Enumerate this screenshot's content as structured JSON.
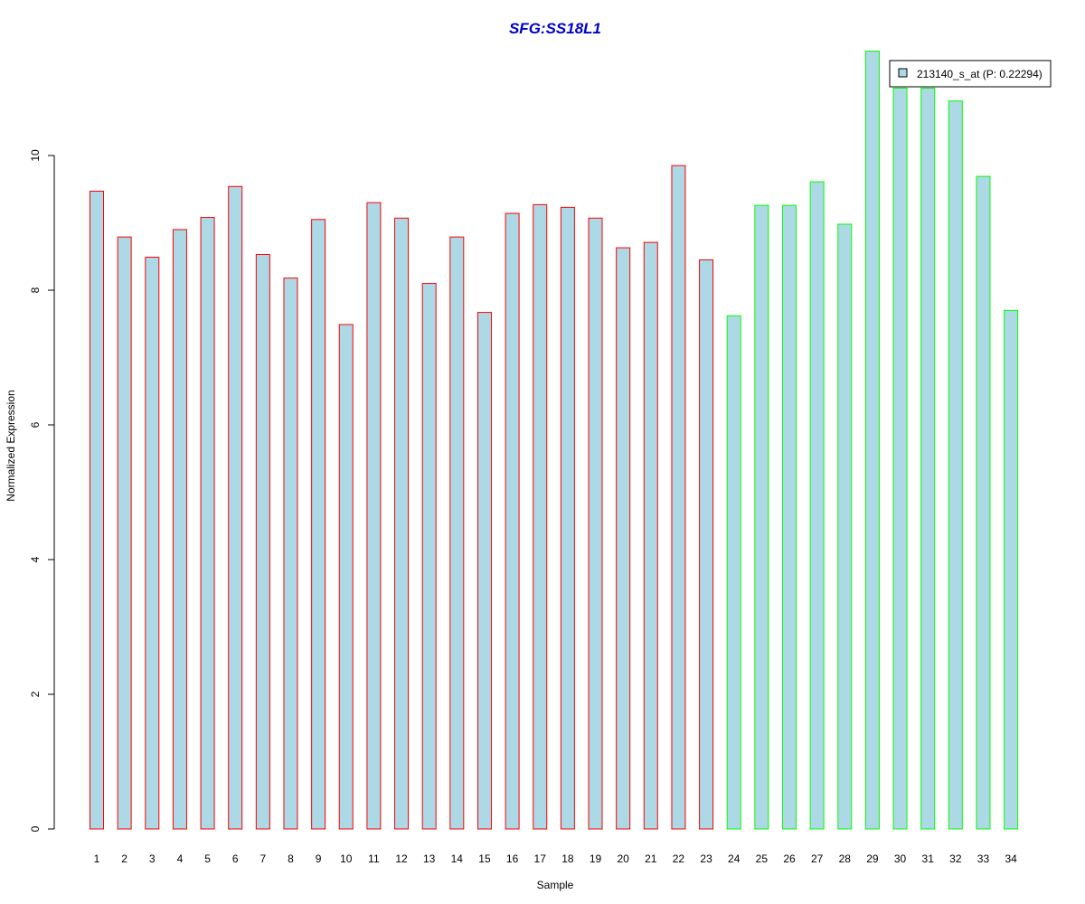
{
  "chart_data": {
    "type": "bar",
    "title": "SFG:SS18L1",
    "xlabel": "Sample",
    "ylabel": "Normalized Expression",
    "ylim": [
      0,
      11.6
    ],
    "yticks": [
      0,
      2,
      4,
      6,
      8,
      10
    ],
    "categories": [
      "1",
      "2",
      "3",
      "4",
      "5",
      "6",
      "7",
      "8",
      "9",
      "10",
      "11",
      "12",
      "13",
      "14",
      "15",
      "16",
      "17",
      "18",
      "19",
      "20",
      "21",
      "22",
      "23",
      "24",
      "25",
      "26",
      "27",
      "28",
      "29",
      "30",
      "31",
      "32",
      "33",
      "34"
    ],
    "series": [
      {
        "name": "213140_s_at (P: 0.22294)",
        "fill": "#add8e6",
        "values": [
          9.47,
          8.79,
          8.49,
          8.9,
          9.08,
          9.54,
          8.53,
          8.18,
          9.05,
          7.49,
          9.3,
          9.07,
          8.1,
          8.79,
          7.67,
          9.14,
          9.27,
          9.23,
          9.07,
          8.63,
          8.71,
          9.85,
          8.45,
          7.62,
          9.26,
          9.26,
          9.61,
          8.98,
          11.55,
          11.0,
          11.0,
          10.81,
          9.69,
          7.7
        ]
      }
    ],
    "group_border_colors": [
      "#ff0000",
      "#ff0000",
      "#ff0000",
      "#ff0000",
      "#ff0000",
      "#ff0000",
      "#ff0000",
      "#ff0000",
      "#ff0000",
      "#ff0000",
      "#ff0000",
      "#ff0000",
      "#ff0000",
      "#ff0000",
      "#ff0000",
      "#ff0000",
      "#ff0000",
      "#ff0000",
      "#ff0000",
      "#ff0000",
      "#ff0000",
      "#ff0000",
      "#ff0000",
      "#00ff00",
      "#00ff00",
      "#00ff00",
      "#00ff00",
      "#00ff00",
      "#00ff00",
      "#00ff00",
      "#00ff00",
      "#00ff00",
      "#00ff00",
      "#00ff00"
    ],
    "legend": {
      "label": "213140_s_at (P: 0.22294)",
      "placement": "top-right"
    },
    "grid": false
  }
}
